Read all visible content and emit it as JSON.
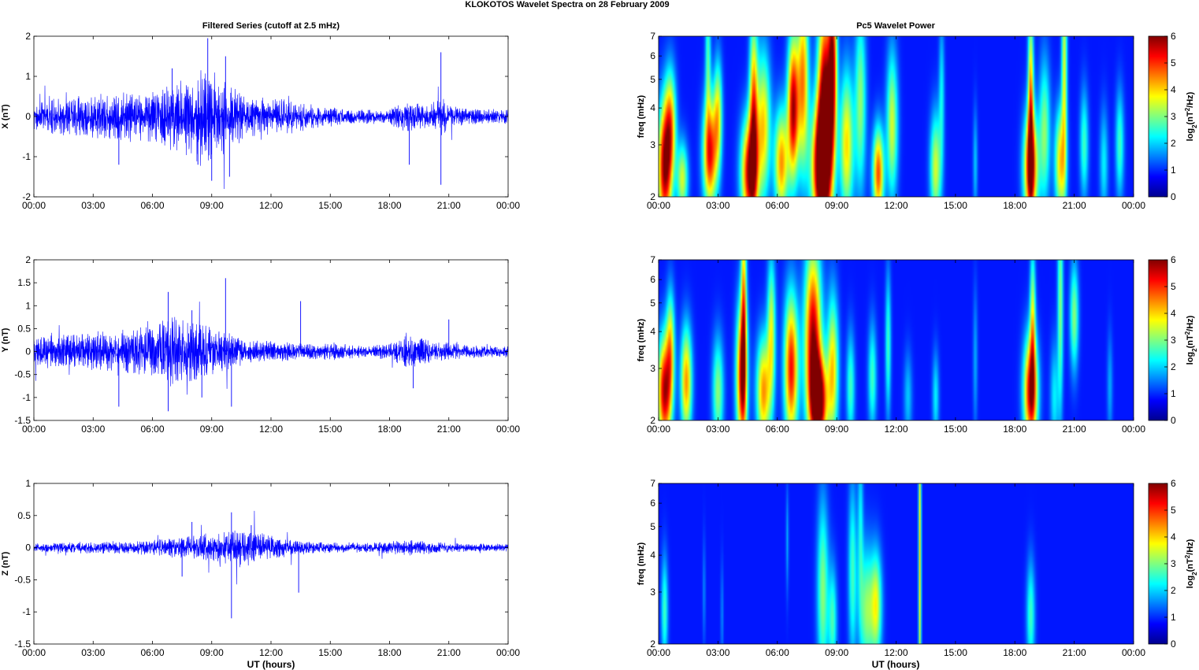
{
  "figure": {
    "title": "KLOKOTOS Wavelet Spectra on 28 February  2009",
    "left_title": "Filtered Series (cutoff at 2.5 mHz)",
    "right_title": "Pc5 Wavelet Power",
    "x_label": "UT (hours)",
    "colors": {
      "series": "#0000ff",
      "axis": "#000000",
      "background": "#ffffff"
    }
  },
  "chart_data": [
    {
      "type": "line",
      "component": "X",
      "ylabel": "X (nT)",
      "ylim": [
        -2,
        2
      ],
      "yticks": [
        -2,
        -1,
        0,
        1,
        2
      ],
      "ytick_labels": [
        "-2",
        "-1",
        "0",
        "1",
        "2"
      ],
      "xlim": [
        0,
        24
      ],
      "xticks": [
        0,
        3,
        6,
        9,
        12,
        15,
        18,
        21,
        24
      ],
      "xtick_labels": [
        "00:00",
        "03:00",
        "06:00",
        "09:00",
        "12:00",
        "15:00",
        "18:00",
        "21:00",
        "00:00"
      ],
      "envelope": {
        "hours": [
          0,
          1,
          2,
          3,
          4,
          5,
          6,
          7,
          8,
          8.5,
          9,
          9.5,
          10,
          11,
          12,
          13,
          14,
          15,
          16,
          17,
          18,
          18.7,
          19,
          20,
          20.6,
          21,
          22,
          23,
          24
        ],
        "amplitude": [
          0.3,
          0.35,
          0.4,
          0.45,
          0.45,
          0.5,
          0.5,
          0.7,
          0.8,
          1.0,
          0.9,
          0.8,
          0.6,
          0.4,
          0.35,
          0.35,
          0.25,
          0.2,
          0.15,
          0.15,
          0.15,
          0.3,
          0.35,
          0.2,
          0.4,
          0.25,
          0.15,
          0.15,
          0.15
        ]
      },
      "spikes": [
        [
          8.8,
          1.95
        ],
        [
          9.0,
          -1.6
        ],
        [
          9.7,
          1.5
        ],
        [
          9.9,
          -1.5
        ],
        [
          20.6,
          1.6
        ],
        [
          20.6,
          -1.7
        ],
        [
          7.0,
          1.2
        ],
        [
          19.0,
          -1.2
        ],
        [
          4.3,
          -1.2
        ],
        [
          8.3,
          -1.2
        ]
      ]
    },
    {
      "type": "line",
      "component": "Y",
      "ylabel": "Y (nT)",
      "ylim": [
        -1.5,
        2
      ],
      "yticks": [
        -1.5,
        -1,
        -0.5,
        0,
        0.5,
        1,
        1.5,
        2
      ],
      "ytick_labels": [
        "-1.5",
        "-1",
        "-0.5",
        "0",
        "0.5",
        "1",
        "1.5",
        "2"
      ],
      "xlim": [
        0,
        24
      ],
      "xticks": [
        0,
        3,
        6,
        9,
        12,
        15,
        18,
        21,
        24
      ],
      "xtick_labels": [
        "00:00",
        "03:00",
        "06:00",
        "09:00",
        "12:00",
        "15:00",
        "18:00",
        "21:00",
        "00:00"
      ],
      "envelope": {
        "hours": [
          0,
          1,
          2,
          3,
          4,
          5,
          6,
          7,
          8,
          9,
          10,
          11,
          12,
          13,
          14,
          15,
          16,
          17,
          18,
          19,
          20,
          21,
          22,
          23,
          24
        ],
        "amplitude": [
          0.25,
          0.3,
          0.3,
          0.35,
          0.35,
          0.4,
          0.45,
          0.6,
          0.6,
          0.4,
          0.3,
          0.2,
          0.2,
          0.15,
          0.15,
          0.15,
          0.12,
          0.12,
          0.15,
          0.3,
          0.2,
          0.15,
          0.12,
          0.1,
          0.1
        ]
      },
      "spikes": [
        [
          9.7,
          1.6
        ],
        [
          6.8,
          1.3
        ],
        [
          6.8,
          -1.3
        ],
        [
          4.3,
          -1.2
        ],
        [
          8.0,
          0.9
        ],
        [
          8.5,
          -1.0
        ],
        [
          19.2,
          -0.8
        ],
        [
          13.5,
          1.1
        ],
        [
          10.0,
          -1.2
        ],
        [
          21.0,
          0.7
        ]
      ]
    },
    {
      "type": "line",
      "component": "Z",
      "ylabel": "Z (nT)",
      "ylim": [
        -1.5,
        1
      ],
      "yticks": [
        -1.5,
        -1,
        -0.5,
        0,
        0.5,
        1
      ],
      "ytick_labels": [
        "-1.5",
        "-1",
        "-0.5",
        "0",
        "0.5",
        "1"
      ],
      "xlim": [
        0,
        24
      ],
      "xticks": [
        0,
        3,
        6,
        9,
        12,
        15,
        18,
        21,
        24
      ],
      "xtick_labels": [
        "00:00",
        "03:00",
        "06:00",
        "09:00",
        "12:00",
        "15:00",
        "18:00",
        "21:00",
        "00:00"
      ],
      "envelope": {
        "hours": [
          0,
          1,
          2,
          3,
          4,
          5,
          6,
          7,
          8,
          9,
          10,
          11,
          12,
          13,
          14,
          15,
          16,
          17,
          18,
          19,
          20,
          21,
          22,
          23,
          24
        ],
        "amplitude": [
          0.06,
          0.06,
          0.07,
          0.07,
          0.08,
          0.08,
          0.1,
          0.12,
          0.15,
          0.2,
          0.22,
          0.22,
          0.15,
          0.1,
          0.08,
          0.07,
          0.06,
          0.06,
          0.08,
          0.1,
          0.08,
          0.06,
          0.05,
          0.05,
          0.05
        ]
      },
      "spikes": [
        [
          10.0,
          -1.1
        ],
        [
          10.0,
          0.55
        ],
        [
          13.4,
          -0.7
        ],
        [
          8.0,
          0.4
        ],
        [
          11.0,
          0.35
        ],
        [
          7.5,
          -0.45
        ]
      ]
    },
    {
      "type": "heatmap",
      "component": "X",
      "ylabel": "freq (mHz)",
      "yscale": "log",
      "ylim": [
        2,
        7
      ],
      "yticks": [
        2,
        3,
        4,
        5,
        6,
        7
      ],
      "ytick_labels": [
        "2",
        "3",
        "4",
        "5",
        "6",
        "7"
      ],
      "xlim": [
        0,
        24
      ],
      "xticks": [
        0,
        3,
        6,
        9,
        12,
        15,
        18,
        21,
        24
      ],
      "xtick_labels": [
        "00:00",
        "03:00",
        "06:00",
        "09:00",
        "12:00",
        "15:00",
        "18:00",
        "21:00",
        "00:00"
      ],
      "colorbar_label": "log2(nT2/Hz)",
      "clim": [
        0,
        6
      ],
      "colorbar_ticks": [
        0,
        1,
        2,
        3,
        4,
        5,
        6
      ],
      "colorbar_tick_labels": [
        "0",
        "1",
        "2",
        "3",
        "4",
        "5",
        "6"
      ],
      "blobs": [
        [
          0.3,
          2.5,
          5.5,
          0.25,
          0.35
        ],
        [
          0.6,
          3.5,
          3.5,
          0.2,
          0.3
        ],
        [
          1.2,
          2.3,
          3.0,
          0.2,
          0.2
        ],
        [
          2.6,
          2.8,
          5.0,
          0.25,
          0.3
        ],
        [
          3.0,
          3.8,
          3.0,
          0.15,
          0.3
        ],
        [
          2.5,
          6.0,
          2.0,
          0.1,
          0.4
        ],
        [
          4.6,
          2.4,
          5.5,
          0.3,
          0.3
        ],
        [
          4.8,
          4.0,
          4.0,
          0.15,
          0.5
        ],
        [
          5.3,
          3.5,
          3.5,
          0.25,
          0.4
        ],
        [
          6.2,
          2.6,
          4.0,
          0.25,
          0.3
        ],
        [
          6.8,
          4.0,
          5.5,
          0.2,
          0.4
        ],
        [
          7.3,
          5.0,
          4.0,
          0.2,
          0.5
        ],
        [
          8.2,
          2.5,
          6.0,
          0.35,
          0.35
        ],
        [
          8.4,
          4.0,
          6.0,
          0.25,
          0.6
        ],
        [
          8.8,
          5.5,
          5.0,
          0.15,
          0.5
        ],
        [
          9.5,
          3.0,
          3.5,
          0.25,
          0.4
        ],
        [
          10.2,
          4.2,
          2.5,
          0.2,
          0.5
        ],
        [
          11.1,
          2.4,
          4.5,
          0.2,
          0.25
        ],
        [
          11.8,
          3.5,
          3.0,
          0.2,
          0.4
        ],
        [
          14.0,
          2.5,
          3.0,
          0.2,
          0.3
        ],
        [
          14.3,
          4.5,
          1.5,
          0.1,
          0.4
        ],
        [
          18.8,
          2.5,
          5.5,
          0.25,
          0.3
        ],
        [
          18.8,
          4.2,
          4.0,
          0.1,
          0.5
        ],
        [
          20.3,
          2.6,
          3.5,
          0.2,
          0.3
        ],
        [
          20.5,
          5.5,
          3.0,
          0.1,
          0.6
        ],
        [
          19.5,
          3.3,
          2.5,
          0.2,
          0.4
        ],
        [
          21.5,
          3.0,
          2.0,
          0.15,
          0.3
        ],
        [
          22.5,
          2.6,
          1.5,
          0.15,
          0.3
        ],
        [
          23.3,
          3.0,
          2.0,
          0.15,
          0.3
        ],
        [
          16.0,
          2.6,
          1.2,
          0.08,
          0.3
        ]
      ]
    },
    {
      "type": "heatmap",
      "component": "Y",
      "ylabel": "freq (mHz)",
      "yscale": "log",
      "ylim": [
        2,
        7
      ],
      "yticks": [
        2,
        3,
        4,
        5,
        6,
        7
      ],
      "ytick_labels": [
        "2",
        "3",
        "4",
        "5",
        "6",
        "7"
      ],
      "xlim": [
        0,
        24
      ],
      "xticks": [
        0,
        3,
        6,
        9,
        12,
        15,
        18,
        21,
        24
      ],
      "xtick_labels": [
        "00:00",
        "03:00",
        "06:00",
        "09:00",
        "12:00",
        "15:00",
        "18:00",
        "21:00",
        "00:00"
      ],
      "colorbar_label": "log2(nT2/Hz)",
      "clim": [
        0,
        6
      ],
      "colorbar_ticks": [
        0,
        1,
        2,
        3,
        4,
        5,
        6
      ],
      "colorbar_tick_labels": [
        "0",
        "1",
        "2",
        "3",
        "4",
        "5",
        "6"
      ],
      "blobs": [
        [
          0.3,
          2.5,
          5.5,
          0.25,
          0.3
        ],
        [
          0.6,
          3.6,
          3.0,
          0.15,
          0.3
        ],
        [
          1.4,
          2.7,
          4.0,
          0.2,
          0.3
        ],
        [
          3.0,
          2.5,
          2.5,
          0.2,
          0.3
        ],
        [
          4.2,
          2.8,
          5.0,
          0.2,
          0.4
        ],
        [
          4.3,
          5.0,
          3.5,
          0.1,
          0.6
        ],
        [
          5.3,
          2.5,
          4.0,
          0.25,
          0.3
        ],
        [
          5.7,
          4.0,
          3.0,
          0.15,
          0.4
        ],
        [
          6.7,
          3.0,
          5.0,
          0.25,
          0.4
        ],
        [
          7.8,
          3.8,
          5.5,
          0.3,
          0.5
        ],
        [
          8.1,
          2.3,
          6.0,
          0.3,
          0.25
        ],
        [
          8.8,
          3.0,
          3.5,
          0.2,
          0.4
        ],
        [
          9.7,
          2.6,
          2.0,
          0.15,
          0.3
        ],
        [
          10.8,
          2.8,
          2.0,
          0.15,
          0.3
        ],
        [
          11.6,
          3.6,
          2.0,
          0.1,
          0.4
        ],
        [
          14.0,
          2.4,
          1.5,
          0.12,
          0.25
        ],
        [
          16.0,
          3.2,
          1.0,
          0.08,
          0.4
        ],
        [
          18.8,
          2.5,
          5.5,
          0.25,
          0.3
        ],
        [
          18.9,
          4.3,
          3.0,
          0.1,
          0.4
        ],
        [
          20.3,
          5.0,
          2.5,
          0.1,
          0.6
        ],
        [
          21.0,
          4.5,
          2.5,
          0.15,
          0.3
        ],
        [
          20.0,
          2.4,
          1.5,
          0.15,
          0.3
        ],
        [
          22.8,
          2.6,
          1.0,
          0.1,
          0.3
        ],
        [
          12.6,
          2.4,
          1.2,
          0.15,
          0.25
        ]
      ]
    },
    {
      "type": "heatmap",
      "component": "Z",
      "ylabel": "freq (mHz)",
      "yscale": "log",
      "ylim": [
        2,
        7
      ],
      "yticks": [
        2,
        3,
        4,
        5,
        6,
        7
      ],
      "ytick_labels": [
        "2",
        "3",
        "4",
        "5",
        "6",
        "7"
      ],
      "xlim": [
        0,
        24
      ],
      "xticks": [
        0,
        3,
        6,
        9,
        12,
        15,
        18,
        21,
        24
      ],
      "xtick_labels": [
        "00:00",
        "03:00",
        "06:00",
        "09:00",
        "12:00",
        "15:00",
        "18:00",
        "21:00",
        "00:00"
      ],
      "colorbar_label": "log2(nT2/Hz)",
      "clim": [
        0,
        6
      ],
      "colorbar_ticks": [
        0,
        1,
        2,
        3,
        4,
        5,
        6
      ],
      "colorbar_tick_labels": [
        "0",
        "1",
        "2",
        "3",
        "4",
        "5",
        "6"
      ],
      "blobs": [
        [
          0.3,
          2.6,
          2.0,
          0.12,
          0.3
        ],
        [
          8.3,
          3.0,
          2.5,
          0.2,
          0.5
        ],
        [
          8.8,
          2.4,
          2.0,
          0.15,
          0.3
        ],
        [
          9.8,
          3.5,
          2.0,
          0.15,
          0.5
        ],
        [
          10.2,
          5.0,
          1.5,
          0.1,
          0.5
        ],
        [
          10.5,
          2.6,
          2.5,
          0.25,
          0.35
        ],
        [
          11.0,
          2.7,
          3.0,
          0.2,
          0.3
        ],
        [
          13.2,
          4.0,
          3.5,
          0.05,
          1.0
        ],
        [
          18.8,
          2.5,
          2.0,
          0.15,
          0.3
        ],
        [
          6.5,
          4.5,
          1.0,
          0.05,
          0.3
        ],
        [
          2.3,
          3.0,
          0.8,
          0.05,
          0.3
        ],
        [
          3.2,
          2.5,
          0.8,
          0.05,
          0.3
        ]
      ]
    }
  ]
}
